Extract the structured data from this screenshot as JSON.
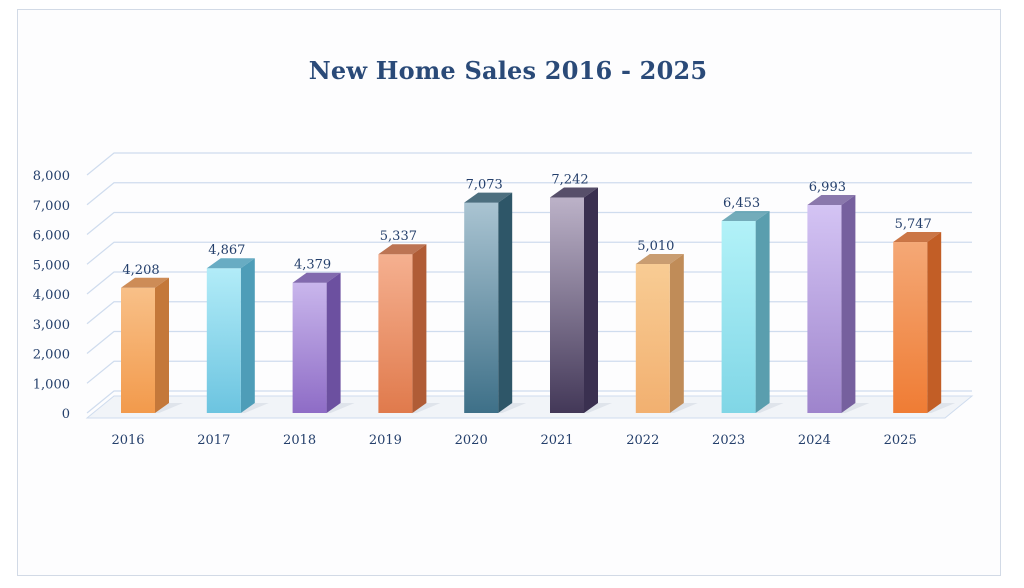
{
  "chart_data": {
    "type": "bar",
    "title": "New Home Sales 2016 - 2025",
    "categories": [
      "2016",
      "2017",
      "2018",
      "2019",
      "2020",
      "2021",
      "2022",
      "2023",
      "2024",
      "2025"
    ],
    "values": [
      4208,
      4867,
      4379,
      5337,
      7073,
      7242,
      5010,
      6453,
      6993,
      5747
    ],
    "value_labels": [
      "4,208",
      "4,867",
      "4,379",
      "5,337",
      "7,073",
      "7,242",
      "5,010",
      "6,453",
      "6,993",
      "5,747"
    ],
    "y_ticks": [
      0,
      1000,
      2000,
      3000,
      4000,
      5000,
      6000,
      7000,
      8000
    ],
    "y_tick_labels": [
      "0",
      "1,000",
      "2,000",
      "3,000",
      "4,000",
      "5,000",
      "6,000",
      "7,000",
      "8,000"
    ],
    "ylim": [
      0,
      8000
    ],
    "grid": true,
    "legend": "none",
    "style": "3d-column",
    "bar_colors": [
      [
        "#f8c088",
        "#f29a4c",
        "#c4783a"
      ],
      [
        "#b2ecf8",
        "#6cc4e0",
        "#4e9db8"
      ],
      [
        "#c9b6ec",
        "#8e6cc6",
        "#6c50a0"
      ],
      [
        "#f5b090",
        "#e07a4c",
        "#b05c36"
      ],
      [
        "#aac4d2",
        "#3e7088",
        "#2e5668"
      ],
      [
        "#bcb2c8",
        "#433858",
        "#3a3050"
      ],
      [
        "#f8cc94",
        "#f2b070",
        "#c08c58"
      ],
      [
        "#b2f2f8",
        "#80d6e6",
        "#5a9eae"
      ],
      [
        "#d4c4f4",
        "#9e84cc",
        "#76609e"
      ],
      [
        "#f4a876",
        "#ef7c34",
        "#c25e26"
      ]
    ],
    "grid_color": "#cfdcee",
    "text_color": "#243f6b"
  }
}
